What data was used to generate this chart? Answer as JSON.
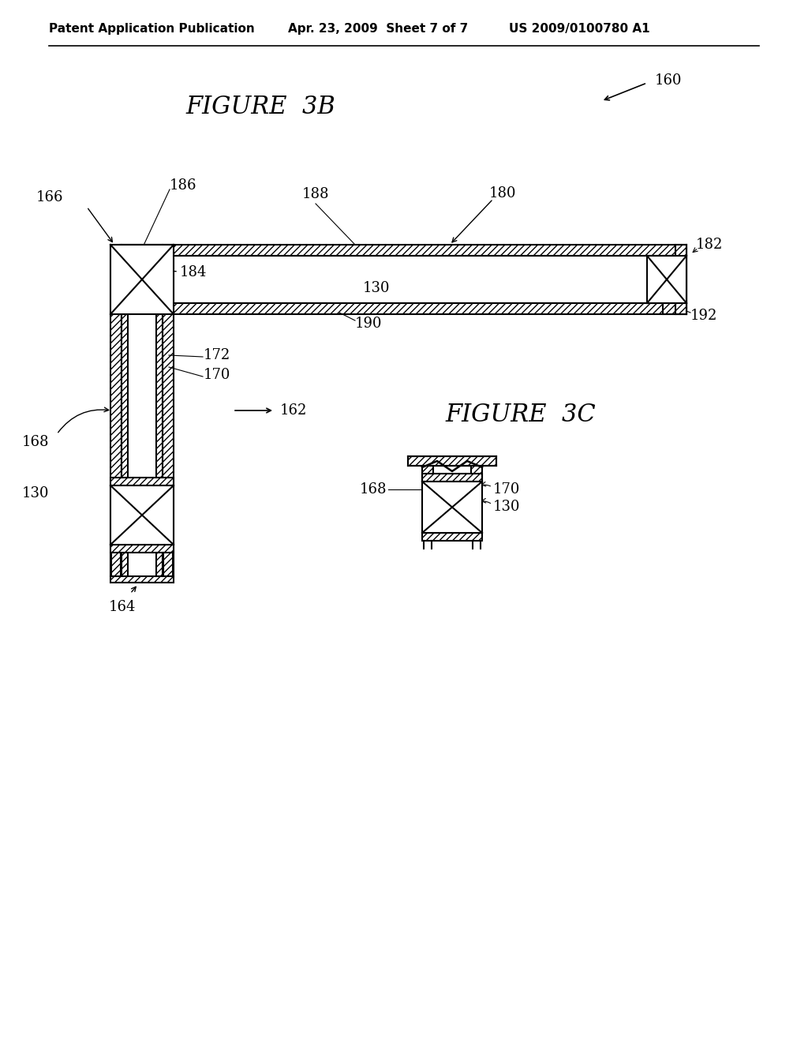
{
  "bg_color": "#ffffff",
  "header_left": "Patent Application Publication",
  "header_mid": "Apr. 23, 2009  Sheet 7 of 7",
  "header_right": "US 2009/0100780 A1",
  "fig3b_title": "FIGURE  3B",
  "fig3c_title": "FIGURE  3C"
}
